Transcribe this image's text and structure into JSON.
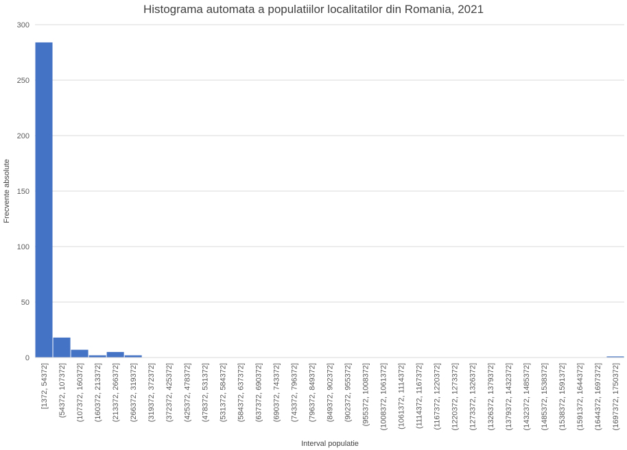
{
  "chart_data": {
    "type": "bar",
    "title": "Histograma automata a populatiilor localitatilor din Romania, 2021",
    "xlabel": "Interval populatie",
    "ylabel": "Frecvente absolute",
    "ylim": [
      0,
      300
    ],
    "yticks": [
      0,
      50,
      100,
      150,
      200,
      250,
      300
    ],
    "grid": true,
    "legend": "none",
    "bar_color": "#4472C4",
    "categories": [
      "[1372, 54372]",
      "(54372, 107372]",
      "(107372, 160372]",
      "(160372, 213372]",
      "(213372, 266372]",
      "(266372, 319372]",
      "(319372, 372372]",
      "(372372, 425372]",
      "(425372, 478372]",
      "(478372, 531372]",
      "(531372, 584372]",
      "(584372, 637372]",
      "(637372, 690372]",
      "(690372, 743372]",
      "(743372, 796372]",
      "(796372, 849372]",
      "(849372, 902372]",
      "(902372, 955372]",
      "(955372, 1008372]",
      "(1008372, 1061372]",
      "(1061372, 1114372]",
      "(1114372, 1167372]",
      "(1167372, 1220372]",
      "(1220372, 1273372]",
      "(1273372, 1326372]",
      "(1326372, 1379372]",
      "(1379372, 1432372]",
      "(1432372, 1485372]",
      "(1485372, 1538372]",
      "(1538372, 1591372]",
      "(1591372, 1644372]",
      "(1644372, 1697372]",
      "(1697372, 1750372]"
    ],
    "values": [
      284,
      18,
      7,
      2,
      5,
      2,
      0,
      0,
      0,
      0,
      0,
      0,
      0,
      0,
      0,
      0,
      0,
      0,
      0,
      0,
      0,
      0,
      0,
      0,
      0,
      0,
      0,
      0,
      0,
      0,
      0,
      0,
      1
    ]
  }
}
